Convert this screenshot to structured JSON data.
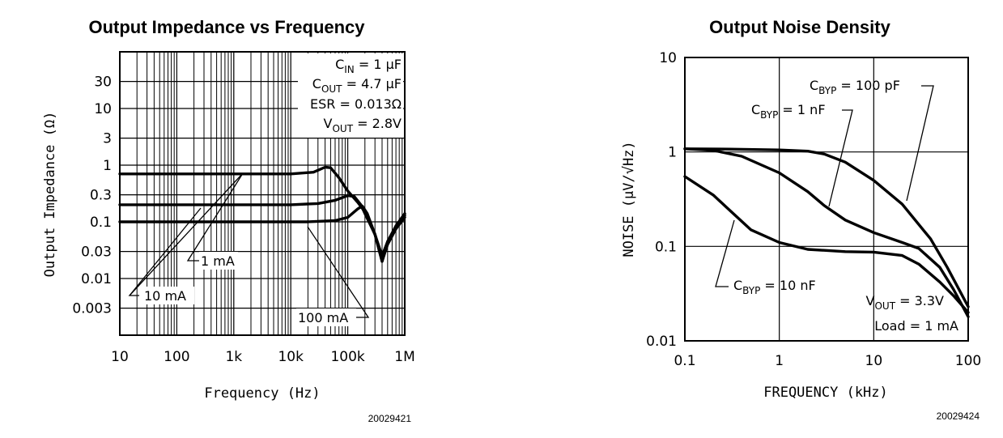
{
  "chart_data": [
    {
      "type": "line",
      "title": "Output Impedance vs Frequency",
      "xlabel": "Frequency (Hz)",
      "ylabel": "Output Impedance (Ω)",
      "xscale": "log",
      "yscale": "log",
      "xlim": [
        10,
        1000000
      ],
      "ylim": [
        0.001,
        100
      ],
      "x_ticks": [
        10,
        100,
        1000,
        10000,
        100000,
        1000000
      ],
      "x_tick_labels": [
        "10",
        "100",
        "1k",
        "10k",
        "100k",
        "1M"
      ],
      "y_ticks": [
        30,
        10,
        3,
        1,
        0.3,
        0.1,
        0.03,
        0.01,
        0.003
      ],
      "y_tick_labels": [
        "30",
        "10",
        "3",
        "1",
        "0.3",
        "0.1",
        "0.03",
        "0.01",
        "0.003"
      ],
      "grid": true,
      "conditions": [
        {
          "sym": "C",
          "sub": "IN",
          "rest": " = 1 µF"
        },
        {
          "sym": "C",
          "sub": "OUT",
          "rest": " = 4.7 µF"
        },
        {
          "sym": "ESR",
          "sub": "",
          "rest": " = 0.013Ω"
        },
        {
          "sym": "V",
          "sub": "OUT",
          "rest": " = 2.8V"
        }
      ],
      "series": [
        {
          "name": "1 mA",
          "points": [
            [
              10,
              0.7
            ],
            [
              10000,
              0.7
            ],
            [
              25000,
              0.75
            ],
            [
              40000,
              0.92
            ],
            [
              50000,
              0.9
            ],
            [
              70000,
              0.6
            ],
            [
              100000,
              0.35
            ],
            [
              150000,
              0.22
            ],
            [
              200000,
              0.15
            ],
            [
              300000,
              0.06
            ],
            [
              400000,
              0.025
            ],
            [
              500000,
              0.045
            ],
            [
              700000,
              0.08
            ],
            [
              1000000,
              0.13
            ]
          ]
        },
        {
          "name": "10 mA",
          "points": [
            [
              10,
              0.2
            ],
            [
              10000,
              0.2
            ],
            [
              30000,
              0.21
            ],
            [
              60000,
              0.24
            ],
            [
              100000,
              0.29
            ],
            [
              130000,
              0.28
            ],
            [
              170000,
              0.2
            ],
            [
              200000,
              0.14
            ],
            [
              300000,
              0.06
            ],
            [
              400000,
              0.02
            ],
            [
              500000,
              0.04
            ],
            [
              700000,
              0.075
            ],
            [
              1000000,
              0.12
            ]
          ]
        },
        {
          "name": "100 mA",
          "points": [
            [
              10,
              0.1
            ],
            [
              20000,
              0.1
            ],
            [
              60000,
              0.105
            ],
            [
              100000,
              0.12
            ],
            [
              150000,
              0.17
            ],
            [
              180000,
              0.19
            ],
            [
              220000,
              0.14
            ],
            [
              300000,
              0.06
            ],
            [
              400000,
              0.02
            ],
            [
              500000,
              0.045
            ],
            [
              700000,
              0.085
            ],
            [
              1000000,
              0.14
            ]
          ]
        }
      ],
      "annotations": [
        {
          "text": "10 mA",
          "target": [
            80000,
            0.75
          ]
        },
        {
          "text": "10 mA",
          "target": [
            3000,
            0.2
          ]
        },
        {
          "text": "1 mA",
          "target": [
            1500,
            0.7
          ]
        },
        {
          "text": "100 mA",
          "target": [
            3200,
            0.1
          ]
        }
      ],
      "figure_id": "20029421"
    },
    {
      "type": "line",
      "title": "Output Noise Density",
      "xlabel": "FREQUENCY (kHz)",
      "ylabel": "NOISE (µV/√Hz)",
      "xscale": "log",
      "yscale": "log",
      "xlim": [
        0.1,
        100
      ],
      "ylim": [
        0.01,
        10
      ],
      "x_ticks": [
        0.1,
        1,
        10,
        100
      ],
      "x_tick_labels": [
        "0.1",
        "1",
        "10",
        "100"
      ],
      "y_ticks": [
        10,
        1,
        0.1,
        0.01
      ],
      "y_tick_labels": [
        "10",
        "1",
        "0.1",
        "0.01"
      ],
      "grid": true,
      "conditions": [
        {
          "sym": "V",
          "sub": "OUT",
          "rest": " = 3.3V"
        },
        {
          "sym": "Load",
          "sub": "",
          "rest": " = 1 mA"
        }
      ],
      "series": [
        {
          "name": "CBYP = 100 pF",
          "points": [
            [
              0.1,
              1.08
            ],
            [
              0.3,
              1.07
            ],
            [
              1,
              1.05
            ],
            [
              2,
              1.02
            ],
            [
              3,
              0.95
            ],
            [
              5,
              0.78
            ],
            [
              10,
              0.5
            ],
            [
              20,
              0.28
            ],
            [
              40,
              0.12
            ],
            [
              60,
              0.06
            ],
            [
              100,
              0.023
            ]
          ]
        },
        {
          "name": "CBYP = 1 nF",
          "points": [
            [
              0.1,
              1.08
            ],
            [
              0.2,
              1.04
            ],
            [
              0.4,
              0.9
            ],
            [
              1,
              0.6
            ],
            [
              2,
              0.38
            ],
            [
              3,
              0.27
            ],
            [
              5,
              0.19
            ],
            [
              10,
              0.14
            ],
            [
              20,
              0.11
            ],
            [
              30,
              0.095
            ],
            [
              50,
              0.06
            ],
            [
              70,
              0.035
            ],
            [
              100,
              0.018
            ]
          ]
        },
        {
          "name": "CBYP = 10 nF",
          "points": [
            [
              0.1,
              0.55
            ],
            [
              0.2,
              0.35
            ],
            [
              0.3,
              0.24
            ],
            [
              0.5,
              0.15
            ],
            [
              1,
              0.11
            ],
            [
              2,
              0.093
            ],
            [
              5,
              0.088
            ],
            [
              10,
              0.087
            ],
            [
              20,
              0.08
            ],
            [
              30,
              0.065
            ],
            [
              50,
              0.042
            ],
            [
              70,
              0.03
            ],
            [
              100,
              0.02
            ]
          ]
        }
      ],
      "annotations": [
        {
          "text": "100 pF",
          "target": [
            30,
            0.48
          ]
        },
        {
          "text": "1 nF",
          "target": [
            4,
            0.23
          ]
        },
        {
          "text": "10 nF",
          "target": [
            0.35,
            0.3
          ]
        }
      ],
      "figure_id": "20029424"
    }
  ]
}
